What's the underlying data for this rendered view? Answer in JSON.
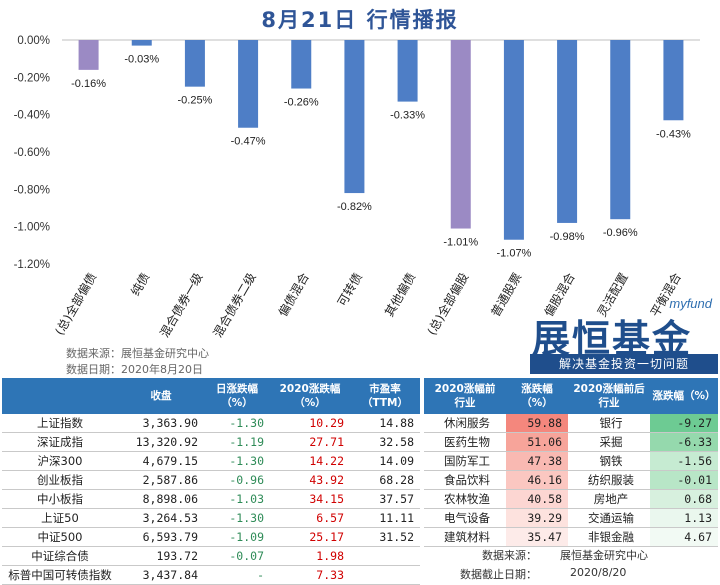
{
  "title": "8月21日  行情播报",
  "chart_data": {
    "type": "bar",
    "categories": [
      "(总)全部偏债",
      "纯债",
      "混合债券一级",
      "混合债券二级",
      "偏债混合",
      "可转债",
      "其他偏债",
      "(总)全部偏股",
      "普通股票",
      "偏股混合",
      "灵活配置",
      "平衡混合"
    ],
    "values": [
      -0.16,
      -0.03,
      -0.25,
      -0.47,
      -0.26,
      -0.82,
      -0.33,
      -1.01,
      -1.07,
      -0.98,
      -0.96,
      -0.43
    ],
    "data_labels": [
      "-0.16%",
      "-0.03%",
      "-0.25%",
      "-0.47%",
      "-0.26%",
      "-0.82%",
      "-0.33%",
      "-1.01%",
      "-1.07%",
      "-0.98%",
      "-0.96%",
      "-0.43%"
    ],
    "highlight": [
      true,
      false,
      false,
      false,
      false,
      false,
      false,
      true,
      false,
      false,
      false,
      false
    ],
    "ylim": [
      -1.2,
      0
    ],
    "yticks": [
      "0.00%",
      "-0.20%",
      "-0.40%",
      "-0.60%",
      "-0.80%",
      "-1.00%",
      "-1.20%"
    ],
    "colors": {
      "bar": "#4e7ec6",
      "highlight": "#9b8ac4"
    },
    "xlabel": "",
    "ylabel": ""
  },
  "source": {
    "line1": "数据来源：展恒基金研究中心",
    "line2": "数据日期：2020年8月20日"
  },
  "logo": {
    "brand": "myfund",
    "name": "展恒基金",
    "slogan": "解决基金投资一切问题"
  },
  "index_table": {
    "headers": [
      "",
      "收盘",
      "日涨跌幅\n（%）",
      "2020涨跌幅\n（%）",
      "市盈率\n（TTM）"
    ],
    "rows": [
      {
        "name": "上证指数",
        "close": "3,363.90",
        "day": "-1.30",
        "ytd": "10.29",
        "pe": "14.88"
      },
      {
        "name": "深证成指",
        "close": "13,320.92",
        "day": "-1.19",
        "ytd": "27.71",
        "pe": "32.58"
      },
      {
        "name": "沪深300",
        "close": "4,679.15",
        "day": "-1.30",
        "ytd": "14.22",
        "pe": "14.09"
      },
      {
        "name": "创业板指",
        "close": "2,587.86",
        "day": "-0.96",
        "ytd": "43.92",
        "pe": "68.28"
      },
      {
        "name": "中小板指",
        "close": "8,898.06",
        "day": "-1.03",
        "ytd": "34.15",
        "pe": "37.57"
      },
      {
        "name": "上证50",
        "close": "3,264.53",
        "day": "-1.30",
        "ytd": "6.57",
        "pe": "11.11"
      },
      {
        "name": "中证500",
        "close": "6,593.79",
        "day": "-1.09",
        "ytd": "25.17",
        "pe": "31.52"
      },
      {
        "name": "中证综合债",
        "close": "193.72",
        "day": "-0.07",
        "ytd": "1.98",
        "pe": ""
      },
      {
        "name": "标普中国可转债指数",
        "close": "3,437.84",
        "day": "-",
        "ytd": "7.33",
        "pe": ""
      }
    ]
  },
  "industry_table": {
    "headers": [
      "2020涨幅前\n行业",
      "涨跌幅\n（%）",
      "2020涨幅前后\n行业",
      "涨跌幅（%）"
    ],
    "rows": [
      {
        "top": "休闲服务",
        "top_v": "59.88",
        "bot": "银行",
        "bot_v": "-9.27"
      },
      {
        "top": "医药生物",
        "top_v": "51.06",
        "bot": "采掘",
        "bot_v": "-6.33"
      },
      {
        "top": "国防军工",
        "top_v": "47.38",
        "bot": "钢铁",
        "bot_v": "-1.56"
      },
      {
        "top": "食品饮料",
        "top_v": "46.16",
        "bot": "纺织服装",
        "bot_v": "-0.01"
      },
      {
        "top": "农林牧渔",
        "top_v": "40.58",
        "bot": "房地产",
        "bot_v": "0.68"
      },
      {
        "top": "电气设备",
        "top_v": "39.29",
        "bot": "交通运输",
        "bot_v": "1.13"
      },
      {
        "top": "建筑材料",
        "top_v": "35.47",
        "bot": "非银金融",
        "bot_v": "4.67"
      }
    ]
  },
  "footer": {
    "source": "数据来源：",
    "source_val": "展恒基金研究中心",
    "date": "数据截止日期：",
    "date_val": "2020/8/20"
  }
}
